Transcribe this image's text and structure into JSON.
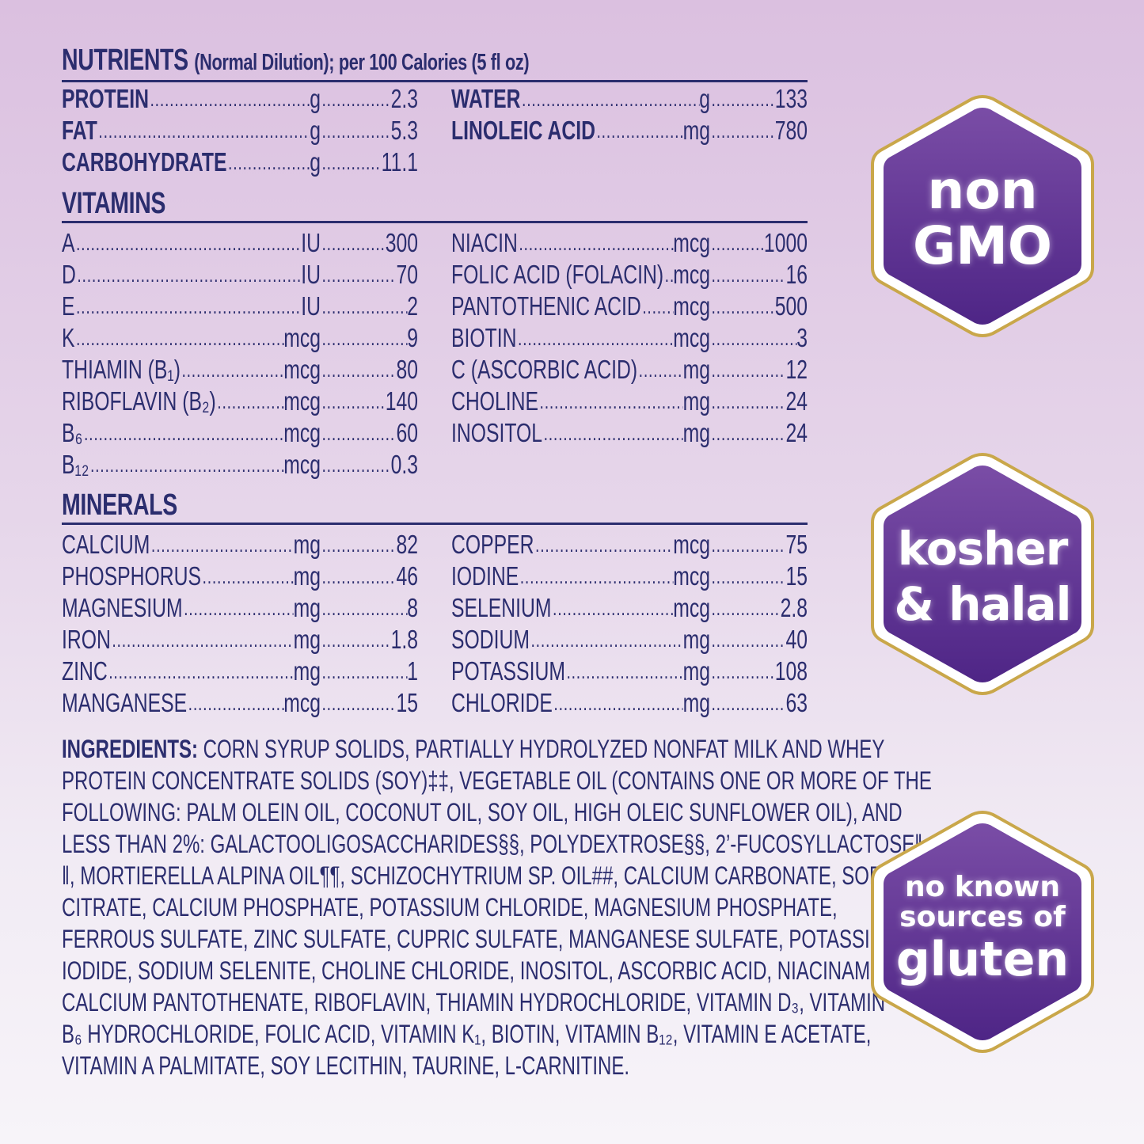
{
  "nutrients": {
    "title": "NUTRIENTS",
    "subtitle": "(Normal Dilution); per 100 Calories (5 fl oz)",
    "left": [
      {
        "name": "PROTEIN",
        "unit": "g",
        "value": "2.3"
      },
      {
        "name": "FAT",
        "unit": "g",
        "value": "5.3"
      },
      {
        "name": "CARBOHYDRATE",
        "unit": "g",
        "value": "11.1"
      }
    ],
    "right": [
      {
        "name": "WATER",
        "unit": "g",
        "value": "133"
      },
      {
        "name": "LINOLEIC ACID",
        "unit": "mg",
        "value": "780"
      }
    ]
  },
  "vitamins": {
    "title": "VITAMINS",
    "left": [
      {
        "name": "A",
        "unit": "IU",
        "value": "300"
      },
      {
        "name": "D",
        "unit": "IU",
        "value": "70"
      },
      {
        "name": "E",
        "unit": "IU",
        "value": "2"
      },
      {
        "name": "K",
        "unit": "mcg",
        "value": "9"
      },
      {
        "name": "THIAMIN (B₁)",
        "unit": "mcg",
        "value": "80"
      },
      {
        "name": "RIBOFLAVIN (B₂)",
        "unit": "mcg",
        "value": "140"
      },
      {
        "name": "B₆",
        "unit": "mcg",
        "value": "60"
      },
      {
        "name": "B₁₂",
        "unit": "mcg",
        "value": "0.3"
      }
    ],
    "right": [
      {
        "name": "NIACIN",
        "unit": "mcg",
        "value": "1000"
      },
      {
        "name": "FOLIC ACID (FOLACIN)",
        "unit": "mcg",
        "value": "16"
      },
      {
        "name": "PANTOTHENIC ACID",
        "unit": "mcg",
        "value": "500"
      },
      {
        "name": "BIOTIN",
        "unit": "mcg",
        "value": "3"
      },
      {
        "name": "C (ASCORBIC ACID)",
        "unit": "mg",
        "value": "12"
      },
      {
        "name": "CHOLINE",
        "unit": "mg",
        "value": "24"
      },
      {
        "name": "INOSITOL",
        "unit": "mg",
        "value": "24"
      }
    ]
  },
  "minerals": {
    "title": "MINERALS",
    "left": [
      {
        "name": "CALCIUM",
        "unit": "mg",
        "value": "82"
      },
      {
        "name": "PHOSPHORUS",
        "unit": "mg",
        "value": "46"
      },
      {
        "name": "MAGNESIUM",
        "unit": "mg",
        "value": "8"
      },
      {
        "name": "IRON",
        "unit": "mg",
        "value": "1.8"
      },
      {
        "name": "ZINC",
        "unit": "mg",
        "value": "1"
      },
      {
        "name": "MANGANESE",
        "unit": "mcg",
        "value": "15"
      }
    ],
    "right": [
      {
        "name": "COPPER",
        "unit": "mcg",
        "value": "75"
      },
      {
        "name": "IODINE",
        "unit": "mcg",
        "value": "15"
      },
      {
        "name": "SELENIUM",
        "unit": "mcg",
        "value": "2.8"
      },
      {
        "name": "SODIUM",
        "unit": "mg",
        "value": "40"
      },
      {
        "name": "POTASSIUM",
        "unit": "mg",
        "value": "108"
      },
      {
        "name": "CHLORIDE",
        "unit": "mg",
        "value": "63"
      }
    ]
  },
  "ingredients": {
    "label": "INGREDIENTS:",
    "lines": [
      " CORN SYRUP SOLIDS, PARTIALLY HYDROLYZED NONFAT MILK AND WHEY",
      "PROTEIN CONCENTRATE SOLIDS (SOY)‡‡, VEGETABLE OIL (CONTAINS ONE OR MORE OF THE",
      "FOLLOWING: PALM OLEIN OIL, COCONUT OIL, SOY OIL, HIGH OLEIC SUNFLOWER OIL), AND",
      "LESS THAN 2%: GALACTOOLIGOSACCHARIDES§§, POLYDEXTROSE§§, 2’-FUCOSYLLACTOSE‖",
      "‖, MORTIERELLA ALPINA OIL¶¶, SCHIZOCHYTRIUM SP. OIL##, CALCIUM CARBONATE, SODIUM",
      "CITRATE, CALCIUM PHOSPHATE, POTASSIUM CHLORIDE, MAGNESIUM PHOSPHATE,",
      "FERROUS SULFATE, ZINC SULFATE, CUPRIC SULFATE, MANGANESE SULFATE, POTASSIUM",
      "IODIDE, SODIUM SELENITE, CHOLINE CHLORIDE, INOSITOL, ASCORBIC ACID, NIACINAMIDE,",
      "CALCIUM PANTOTHENATE, RIBOFLAVIN, THIAMIN HYDROCHLORIDE, VITAMIN D₃, VITAMIN",
      "B₆ HYDROCHLORIDE, FOLIC ACID, VITAMIN K₁, BIOTIN, VITAMIN B₁₂, VITAMIN E ACETATE,",
      "VITAMIN A PALMITATE, SOY LECITHIN, TAURINE, L-CARNITINE."
    ]
  },
  "badges": [
    {
      "icon": "drop-leaf-icon",
      "line1": "non",
      "line2": "GMO"
    },
    {
      "icon": "kosher-halal-symbol-icon",
      "line1": "kosher",
      "line2": "& halal"
    },
    {
      "icon": "wheat-icon",
      "line1": "no known",
      "line2": "sources of",
      "line3": "gluten"
    }
  ],
  "colors": {
    "text": "#2b2d6e",
    "badge": "#5a2d8c",
    "gold": "#c9a74a"
  }
}
